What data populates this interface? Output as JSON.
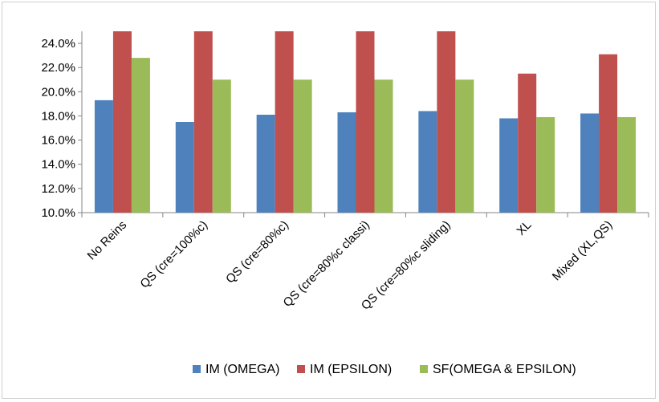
{
  "chart_data": {
    "type": "bar",
    "title": "",
    "xlabel": "",
    "ylabel": "",
    "ylim": [
      0.1,
      0.25
    ],
    "yticks": [
      "10.0%",
      "12.0%",
      "14.0%",
      "16.0%",
      "18.0%",
      "20.0%",
      "22.0%",
      "24.0%"
    ],
    "ytick_values": [
      0.1,
      0.12,
      0.14,
      0.16,
      0.18,
      0.2,
      0.22,
      0.24
    ],
    "categories": [
      "No Reins",
      "QS (cre=100%c)",
      "QS (cre=80%c)",
      "QS (cre=80%c classi)",
      "QS (cre=80%c sliding)",
      "XL",
      "Mixed (XL,QS)"
    ],
    "series": [
      {
        "name": "IM (OMEGA)",
        "color": "#4f81bd",
        "values": [
          0.193,
          0.175,
          0.181,
          0.183,
          0.184,
          0.178,
          0.182
        ]
      },
      {
        "name": "IM (EPSILON)",
        "color": "#c0504d",
        "values": [
          0.25,
          0.25,
          0.25,
          0.25,
          0.25,
          0.215,
          0.231
        ]
      },
      {
        "name": "SF(OMEGA & EPSILON)",
        "color": "#9bbb59",
        "values": [
          0.228,
          0.21,
          0.21,
          0.21,
          0.21,
          0.179,
          0.179
        ]
      }
    ],
    "grid": false,
    "legend_position": "bottom"
  }
}
